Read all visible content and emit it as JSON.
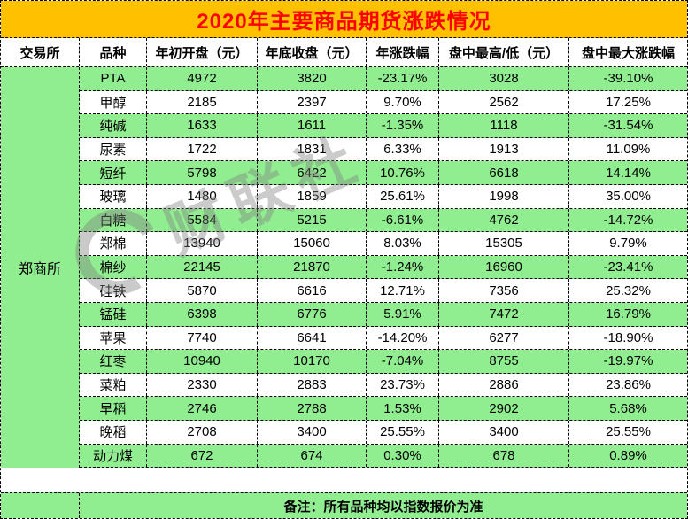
{
  "chart_data": {
    "type": "table",
    "title": "2020年主要商品期货涨跌情况",
    "columns": [
      "交易所",
      "品种",
      "年初开盘（元）",
      "年底收盘（元）",
      "年涨跌幅",
      "盘中最高/低（元）",
      "盘中最大涨跌幅"
    ],
    "exchange": "郑商所",
    "rows": [
      [
        "PTA",
        "4972",
        "3820",
        "-23.17%",
        "3028",
        "-39.10%"
      ],
      [
        "甲醇",
        "2185",
        "2397",
        "9.70%",
        "2562",
        "17.25%"
      ],
      [
        "纯碱",
        "1633",
        "1611",
        "-1.35%",
        "1118",
        "-31.54%"
      ],
      [
        "尿素",
        "1722",
        "1831",
        "6.33%",
        "1913",
        "11.09%"
      ],
      [
        "短纤",
        "5798",
        "6422",
        "10.76%",
        "6618",
        "14.14%"
      ],
      [
        "玻璃",
        "1480",
        "1859",
        "25.61%",
        "1998",
        "35.00%"
      ],
      [
        "白糖",
        "5584",
        "5215",
        "-6.61%",
        "4762",
        "-14.72%"
      ],
      [
        "郑棉",
        "13940",
        "15060",
        "8.03%",
        "15305",
        "9.79%"
      ],
      [
        "棉纱",
        "22145",
        "21870",
        "-1.24%",
        "16960",
        "-23.41%"
      ],
      [
        "硅铁",
        "5870",
        "6616",
        "12.71%",
        "7356",
        "25.32%"
      ],
      [
        "锰硅",
        "6398",
        "6776",
        "5.91%",
        "7472",
        "16.79%"
      ],
      [
        "苹果",
        "7740",
        "6641",
        "-14.20%",
        "6277",
        "-18.90%"
      ],
      [
        "红枣",
        "10940",
        "10170",
        "-7.04%",
        "8755",
        "-19.97%"
      ],
      [
        "菜粕",
        "2330",
        "2883",
        "23.73%",
        "2886",
        "23.86%"
      ],
      [
        "早稻",
        "2746",
        "2788",
        "1.53%",
        "2902",
        "5.68%"
      ],
      [
        "晚稻",
        "2708",
        "3400",
        "25.55%",
        "3400",
        "25.55%"
      ],
      [
        "动力煤",
        "672",
        "674",
        "0.30%",
        "678",
        "0.89%"
      ]
    ],
    "note": "备注：所有品种均以指数报价为准",
    "layout": {
      "row_fill_pattern": "alternating green/white starting green",
      "legend": "none",
      "grid": "dashed black borders"
    }
  },
  "watermark": {
    "text": "财联社"
  },
  "colors": {
    "banner": "#FFC000",
    "title_text": "#FF0000",
    "row_green": "#90EE90",
    "row_white": "#FFFFFF",
    "border": "#000000"
  }
}
